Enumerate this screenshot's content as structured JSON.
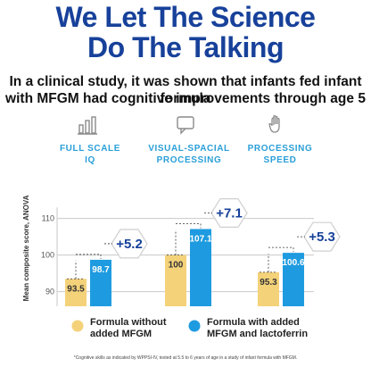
{
  "headline": {
    "line1": "We Let The Science",
    "line2": "Do The Talking"
  },
  "subhead": {
    "line1": "In a clinical study, it was shown that infants fed infant formula",
    "line2": "with MFGM had cognitive improvements through age 5"
  },
  "footnote": "*Cognitive skills as indicated by WPPSI-IV, tested at 5.5 to 6 years of age in a study of infant formula with MFGM.",
  "colors": {
    "brand_blue": "#17419a",
    "accent_blue": "#2a9fd8",
    "formula_without": "#f4d27a",
    "formula_with": "#1e9be0"
  },
  "icons": [
    "chart-bars-icon",
    "speech-bubble-icon",
    "hand-icon"
  ],
  "chart_data": {
    "type": "bar",
    "categories": [
      {
        "line1": "FULL SCALE",
        "line2": "IQ"
      },
      {
        "line1": "VISUAL-SPACIAL",
        "line2": "PROCESSING"
      },
      {
        "line1": "PROCESSING",
        "line2": "SPEED"
      }
    ],
    "series": [
      {
        "name_line1": "Formula without",
        "name_line2": "added MFGM",
        "values": [
          93.5,
          100,
          95.3
        ]
      },
      {
        "name_line1": "Formula with added",
        "name_line2": "MFGM and lactoferrin",
        "values": [
          98.7,
          107.1,
          100.6
        ]
      }
    ],
    "value_labels": [
      [
        "93.5",
        "100",
        "95.3"
      ],
      [
        "98.7",
        "107.1",
        "100.6"
      ]
    ],
    "differences": [
      "+5.2",
      "+7.1",
      "+5.3"
    ],
    "ylabel": "Mean composite score, ANOVA",
    "yticks": [
      90,
      100,
      110
    ],
    "ylim": [
      86,
      113
    ]
  }
}
